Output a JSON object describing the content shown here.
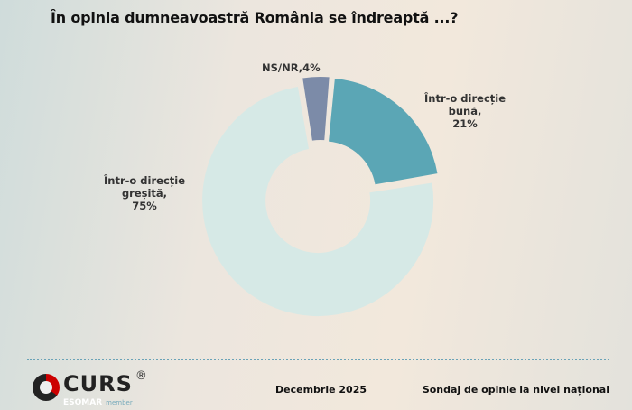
{
  "chart_data": {
    "type": "pie",
    "title": "În opinia dumneavoastră România se îndreaptă ...?",
    "donut": true,
    "slices": [
      {
        "label_lines": [
          "Într-o direcție",
          "bună,",
          "21%"
        ],
        "value": 21,
        "color": "#5ba6b5"
      },
      {
        "label_lines": [
          "Într-o direcție",
          "greșită,",
          "75%"
        ],
        "value": 75,
        "color": "#d6e9e6"
      },
      {
        "label_lines": [
          "NS/NR,4%"
        ],
        "value": 4,
        "color": "#7c8ba8"
      }
    ]
  },
  "footer": {
    "logo": "CURS",
    "logo_sub": "ESOMAR",
    "logo_member": "member",
    "date": "Decembrie 2025",
    "survey": "Sondaj de opinie la nivel național"
  }
}
